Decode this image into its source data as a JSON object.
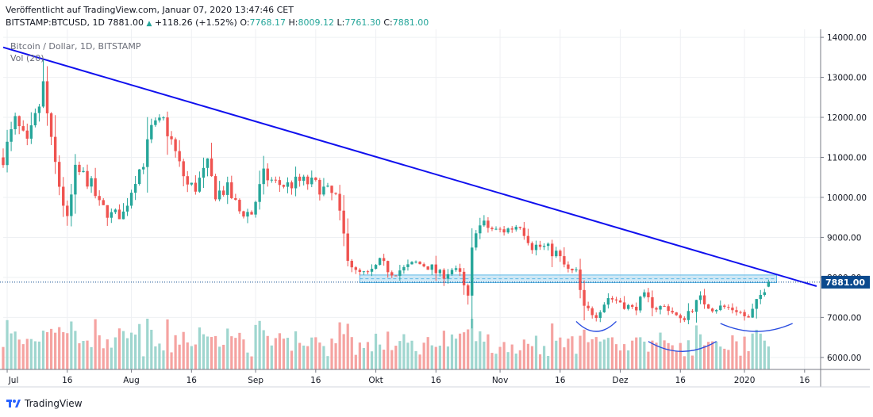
{
  "header": {
    "published": "Veröffentlicht auf TradingView.com, Januar 07, 2020 13:47:46 CET",
    "symbol": "BITSTAMP:BTCUSD, 1D 7881.00",
    "arrow": "▲",
    "change": "+118.26 (+1.52%)",
    "o_label": "O:",
    "o_value": "7768.17",
    "h_label": "H:",
    "h_value": "8009.12",
    "l_label": "L:",
    "l_value": "7761.30",
    "c_label": "C:",
    "c_value": "7881.00"
  },
  "legend": {
    "series_title": "Bitcoin / Dollar, 1D, BITSTAMP",
    "volume_label": "Vol (20)"
  },
  "footer": {
    "brand": "TradingView",
    "logo_icon": "tradingview-logo-icon"
  },
  "colors": {
    "up": "#26a69a",
    "down": "#ef5350",
    "vol_up": "#9fd6cf",
    "vol_down": "#f5a3a1",
    "trendline": "#1010ee",
    "zone": "#5cb8e6",
    "arc": "#2a4de0",
    "last_price": "#0b4a8e"
  },
  "chart_data": {
    "type": "candlestick",
    "title": "Bitcoin / Dollar, 1D, BITSTAMP",
    "ylim": [
      5700,
      14200
    ],
    "y_ticks": [
      "14000.00",
      "13000.00",
      "12000.00",
      "11000.00",
      "10000.00",
      "9000.00",
      "8000.00",
      "7000.00",
      "6000.00"
    ],
    "y_tick_values": [
      14000,
      13000,
      12000,
      11000,
      10000,
      9000,
      8000,
      7000,
      6000
    ],
    "x_range": [
      "2019-06-30",
      "2020-01-20"
    ],
    "x_ticks": [
      {
        "label": "Jul",
        "date": "2019-07-01"
      },
      {
        "label": "16",
        "date": "2019-07-16"
      },
      {
        "label": "Aug",
        "date": "2019-08-01"
      },
      {
        "label": "16",
        "date": "2019-08-16"
      },
      {
        "label": "Sep",
        "date": "2019-09-01"
      },
      {
        "label": "16",
        "date": "2019-09-16"
      },
      {
        "label": "Okt",
        "date": "2019-10-01"
      },
      {
        "label": "16",
        "date": "2019-10-16"
      },
      {
        "label": "Nov",
        "date": "2019-11-01"
      },
      {
        "label": "16",
        "date": "2019-11-16"
      },
      {
        "label": "Dez",
        "date": "2019-12-01"
      },
      {
        "label": "16",
        "date": "2019-12-16"
      },
      {
        "label": "2020",
        "date": "2020-01-01"
      },
      {
        "label": "16",
        "date": "2020-01-16"
      }
    ],
    "last_price": 7881.0,
    "last_price_label": "7881.00",
    "series_close": [
      {
        "date": "2019-06-30",
        "close": 11000
      },
      {
        "date": "2019-07-03",
        "close": 11900
      },
      {
        "date": "2019-07-06",
        "close": 11300
      },
      {
        "date": "2019-07-09",
        "close": 12300
      },
      {
        "date": "2019-07-10",
        "close": 12800
      },
      {
        "date": "2019-07-12",
        "close": 11350
      },
      {
        "date": "2019-07-14",
        "close": 10300
      },
      {
        "date": "2019-07-16",
        "close": 9400
      },
      {
        "date": "2019-07-18",
        "close": 10650
      },
      {
        "date": "2019-07-20",
        "close": 10550
      },
      {
        "date": "2019-07-22",
        "close": 10300
      },
      {
        "date": "2019-07-24",
        "close": 9800
      },
      {
        "date": "2019-07-27",
        "close": 9550
      },
      {
        "date": "2019-07-30",
        "close": 9600
      },
      {
        "date": "2019-08-02",
        "close": 10500
      },
      {
        "date": "2019-08-04",
        "close": 10900
      },
      {
        "date": "2019-08-06",
        "close": 11700
      },
      {
        "date": "2019-08-09",
        "close": 11900
      },
      {
        "date": "2019-08-11",
        "close": 11400
      },
      {
        "date": "2019-08-13",
        "close": 10800
      },
      {
        "date": "2019-08-15",
        "close": 10300
      },
      {
        "date": "2019-08-17",
        "close": 10250
      },
      {
        "date": "2019-08-20",
        "close": 10800
      },
      {
        "date": "2019-08-22",
        "close": 10100
      },
      {
        "date": "2019-08-25",
        "close": 10200
      },
      {
        "date": "2019-08-28",
        "close": 9650
      },
      {
        "date": "2019-08-31",
        "close": 9600
      },
      {
        "date": "2019-09-03",
        "close": 10550
      },
      {
        "date": "2019-09-06",
        "close": 10350
      },
      {
        "date": "2019-09-09",
        "close": 10300
      },
      {
        "date": "2019-09-12",
        "close": 10400
      },
      {
        "date": "2019-09-15",
        "close": 10350
      },
      {
        "date": "2019-09-18",
        "close": 10200
      },
      {
        "date": "2019-09-21",
        "close": 10000
      },
      {
        "date": "2019-09-24",
        "close": 8550
      },
      {
        "date": "2019-09-26",
        "close": 8100
      },
      {
        "date": "2019-09-29",
        "close": 8050
      },
      {
        "date": "2019-10-02",
        "close": 8350
      },
      {
        "date": "2019-10-05",
        "close": 8150
      },
      {
        "date": "2019-10-08",
        "close": 8200
      },
      {
        "date": "2019-10-11",
        "close": 8350
      },
      {
        "date": "2019-10-14",
        "close": 8300
      },
      {
        "date": "2019-10-17",
        "close": 8050
      },
      {
        "date": "2019-10-20",
        "close": 8200
      },
      {
        "date": "2019-10-22",
        "close": 8050
      },
      {
        "date": "2019-10-24",
        "close": 7450
      },
      {
        "date": "2019-10-25",
        "close": 8650
      },
      {
        "date": "2019-10-26",
        "close": 9250
      },
      {
        "date": "2019-10-28",
        "close": 9300
      },
      {
        "date": "2019-10-31",
        "close": 9150
      },
      {
        "date": "2019-11-03",
        "close": 9200
      },
      {
        "date": "2019-11-06",
        "close": 9350
      },
      {
        "date": "2019-11-09",
        "close": 8800
      },
      {
        "date": "2019-11-12",
        "close": 8750
      },
      {
        "date": "2019-11-15",
        "close": 8600
      },
      {
        "date": "2019-11-18",
        "close": 8150
      },
      {
        "date": "2019-11-20",
        "close": 8100
      },
      {
        "date": "2019-11-22",
        "close": 7200
      },
      {
        "date": "2019-11-25",
        "close": 7100
      },
      {
        "date": "2019-11-28",
        "close": 7500
      },
      {
        "date": "2019-12-01",
        "close": 7400
      },
      {
        "date": "2019-12-04",
        "close": 7200
      },
      {
        "date": "2019-12-07",
        "close": 7500
      },
      {
        "date": "2019-12-10",
        "close": 7250
      },
      {
        "date": "2019-12-13",
        "close": 7250
      },
      {
        "date": "2019-12-16",
        "close": 6900
      },
      {
        "date": "2019-12-18",
        "close": 7150
      },
      {
        "date": "2019-12-21",
        "close": 7450
      },
      {
        "date": "2019-12-24",
        "close": 7250
      },
      {
        "date": "2019-12-27",
        "close": 7250
      },
      {
        "date": "2019-12-30",
        "close": 7200
      },
      {
        "date": "2020-01-02",
        "close": 6950
      },
      {
        "date": "2020-01-04",
        "close": 7350
      },
      {
        "date": "2020-01-06",
        "close": 7750
      },
      {
        "date": "2020-01-07",
        "close": 7881
      }
    ],
    "trendline": [
      {
        "date": "2019-06-30",
        "price": 13750
      },
      {
        "date": "2020-01-19",
        "price": 7780
      }
    ],
    "support_zone": {
      "from": "2019-09-27",
      "to": "2020-01-09",
      "low": 7870,
      "high": 8060
    },
    "arcs": [
      {
        "from": "2019-11-20",
        "to": "2019-11-30",
        "depth_price": 6650,
        "rim_price": 6900
      },
      {
        "from": "2019-12-08",
        "to": "2019-12-25",
        "depth_price": 6150,
        "rim_price": 6400
      },
      {
        "from": "2019-12-26",
        "to": "2020-01-13",
        "depth_price": 6650,
        "rim_price": 6850
      }
    ]
  }
}
